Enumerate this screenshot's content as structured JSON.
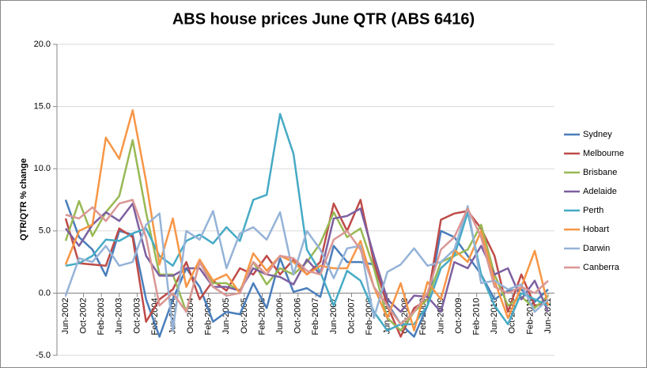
{
  "chart_data": {
    "type": "line",
    "title": "ABS house prices June QTR (ABS 6416)",
    "y_label": "QTR/QTR % change",
    "x": [
      "2002-06",
      "2002-09",
      "2002-12",
      "2003-03",
      "2003-06",
      "2003-09",
      "2003-12",
      "2004-03",
      "2004-06",
      "2004-09",
      "2004-12",
      "2005-03",
      "2005-06",
      "2005-09",
      "2005-12",
      "2006-03",
      "2006-06",
      "2006-09",
      "2006-12",
      "2007-03",
      "2007-06",
      "2007-09",
      "2007-12",
      "2008-03",
      "2008-06",
      "2008-09",
      "2008-12",
      "2009-03",
      "2009-06",
      "2009-09",
      "2009-12",
      "2010-03",
      "2010-06",
      "2010-09",
      "2010-12",
      "2011-03",
      "2011-06"
    ],
    "xlim": [
      "2002-06",
      "2011-06"
    ],
    "xticks": [
      {
        "value": "2002-06",
        "label": "Jun-2002"
      },
      {
        "value": "2002-10",
        "label": "Oct-2002"
      },
      {
        "value": "2003-02",
        "label": "Feb-2003"
      },
      {
        "value": "2003-06",
        "label": "Jun-2003"
      },
      {
        "value": "2003-10",
        "label": "Oct-2003"
      },
      {
        "value": "2004-02",
        "label": "Feb-2004"
      },
      {
        "value": "2004-06",
        "label": "Jun-2004"
      },
      {
        "value": "2004-10",
        "label": "Oct-2004"
      },
      {
        "value": "2005-02",
        "label": "Feb-2005"
      },
      {
        "value": "2005-06",
        "label": "Jun-2005"
      },
      {
        "value": "2005-10",
        "label": "Oct-2005"
      },
      {
        "value": "2006-02",
        "label": "Feb-2006"
      },
      {
        "value": "2006-06",
        "label": "Jun-2006"
      },
      {
        "value": "2006-10",
        "label": "Oct-2006"
      },
      {
        "value": "2007-02",
        "label": "Feb-2007"
      },
      {
        "value": "2007-06",
        "label": "Jun-2007"
      },
      {
        "value": "2007-10",
        "label": "Oct-2007"
      },
      {
        "value": "2008-02",
        "label": "Feb-2008"
      },
      {
        "value": "2008-06",
        "label": "Jun-2008"
      },
      {
        "value": "2008-10",
        "label": "Oct-2008"
      },
      {
        "value": "2009-02",
        "label": "Feb-2009"
      },
      {
        "value": "2009-06",
        "label": "Jun-2009"
      },
      {
        "value": "2009-10",
        "label": "Oct-2009"
      },
      {
        "value": "2010-02",
        "label": "Feb-2010"
      },
      {
        "value": "2010-06",
        "label": "Jun-2010"
      },
      {
        "value": "2010-10",
        "label": "Oct-2010"
      },
      {
        "value": "2011-02",
        "label": "Feb-2011"
      },
      {
        "value": "2011-06",
        "label": "Jun-2011"
      }
    ],
    "ylim": [
      -5,
      20
    ],
    "yticks": [
      {
        "value": -5,
        "label": "-5.0"
      },
      {
        "value": 0,
        "label": "0.0"
      },
      {
        "value": 5,
        "label": "5.0"
      },
      {
        "value": 10,
        "label": "10.0"
      },
      {
        "value": 15,
        "label": "15.0"
      },
      {
        "value": 20,
        "label": "20.0"
      }
    ],
    "grid": true,
    "legend": "right",
    "series": [
      {
        "name": "Sydney",
        "color": "#4a7ebb",
        "values": [
          7.5,
          4.5,
          3.5,
          1.4,
          5.0,
          4.7,
          -0.5,
          -3.5,
          -0.5,
          2.0,
          0.5,
          -2.3,
          -1.5,
          -1.7,
          0.8,
          -1.2,
          2.8,
          0.1,
          0.4,
          -0.3,
          3.8,
          2.5,
          2.5,
          2.3,
          -0.8,
          -2.5,
          -3.5,
          -1.0,
          5.0,
          4.5,
          3.0,
          1.5,
          -0.5,
          0.2,
          0.3,
          -0.7,
          0.3
        ]
      },
      {
        "name": "Melbourne",
        "color": "#be4b48",
        "values": [
          6.0,
          2.4,
          2.3,
          2.2,
          5.2,
          4.5,
          -2.3,
          -0.5,
          0.3,
          2.5,
          -0.5,
          1.0,
          0.2,
          2.0,
          1.5,
          3.0,
          1.5,
          2.7,
          1.5,
          2.5,
          7.2,
          5.0,
          7.5,
          2.5,
          -1.0,
          -3.5,
          -1.2,
          -0.5,
          5.9,
          6.4,
          6.6,
          5.2,
          3.0,
          -1.5,
          1.5,
          -1.0,
          -0.8
        ]
      },
      {
        "name": "Brisbane",
        "color": "#98b954",
        "values": [
          4.2,
          7.4,
          4.6,
          6.5,
          7.8,
          12.3,
          6.5,
          1.5,
          1.5,
          -1.5,
          2.5,
          0.8,
          0.8,
          0.2,
          2.5,
          0.7,
          2.0,
          1.5,
          2.5,
          4.0,
          6.5,
          4.5,
          5.2,
          2.0,
          -2.0,
          -3.0,
          -1.5,
          -0.5,
          2.5,
          3.0,
          3.5,
          5.5,
          1.5,
          -1.0,
          -0.3,
          -1.2,
          -0.2
        ]
      },
      {
        "name": "Adelaide",
        "color": "#7d60a0",
        "values": [
          5.2,
          3.8,
          5.5,
          6.5,
          5.8,
          7.2,
          3.0,
          1.4,
          1.4,
          2.0,
          2.0,
          0.5,
          0.5,
          0.2,
          2.0,
          1.5,
          1.3,
          0.7,
          2.7,
          1.5,
          6.0,
          6.2,
          6.8,
          3.0,
          -0.5,
          -1.5,
          -0.2,
          -0.3,
          -1.5,
          2.5,
          2.0,
          3.8,
          1.5,
          2.0,
          -0.5,
          1.0,
          -1.5
        ]
      },
      {
        "name": "Perth",
        "color": "#46aac5",
        "values": [
          2.2,
          2.4,
          3.0,
          4.3,
          4.2,
          4.8,
          5.2,
          3.0,
          2.2,
          4.2,
          4.7,
          4.0,
          5.3,
          4.2,
          7.5,
          7.9,
          14.4,
          11.2,
          3.5,
          1.7,
          -1.0,
          1.8,
          1.0,
          -1.5,
          -3.0,
          -2.5,
          -2.5,
          -1.0,
          2.0,
          3.0,
          6.5,
          1.5,
          -1.0,
          -2.5,
          0.0,
          -0.5,
          -1.0
        ]
      },
      {
        "name": "Hobart",
        "color": "#f79646",
        "values": [
          2.3,
          5.0,
          5.5,
          12.5,
          10.8,
          14.7,
          9.0,
          2.3,
          6.0,
          0.5,
          2.7,
          1.0,
          1.5,
          0.0,
          3.2,
          1.8,
          3.0,
          2.5,
          1.5,
          2.2,
          2.0,
          2.0,
          4.2,
          0.5,
          -2.0,
          0.8,
          -3.0,
          0.9,
          -0.5,
          3.5,
          2.5,
          5.0,
          1.0,
          -2.0,
          0.5,
          3.4,
          -1.0
        ]
      },
      {
        "name": "Darwin",
        "color": "#95b3d7",
        "values": [
          -0.2,
          2.8,
          2.5,
          3.8,
          2.2,
          2.5,
          5.5,
          6.4,
          -3.0,
          5.0,
          4.3,
          6.6,
          2.0,
          4.8,
          5.3,
          4.3,
          6.5,
          1.5,
          5.0,
          3.5,
          1.2,
          3.6,
          3.8,
          -2.0,
          1.7,
          2.3,
          3.6,
          2.2,
          2.5,
          3.5,
          7.0,
          0.8,
          1.0,
          0.3,
          0.7,
          -1.5,
          -0.5
        ]
      },
      {
        "name": "Canberra",
        "color": "#d99795",
        "values": [
          6.3,
          6.0,
          6.9,
          5.8,
          7.2,
          7.5,
          4.5,
          -1.0,
          0.0,
          -1.5,
          2.5,
          0.5,
          -0.2,
          0.0,
          2.5,
          1.5,
          3.0,
          2.8,
          1.8,
          1.5,
          4.3,
          5.0,
          3.5,
          0.5,
          -1.0,
          -2.5,
          -1.5,
          0.0,
          3.5,
          4.5,
          6.8,
          4.5,
          0.5,
          0.0,
          0.5,
          0.0,
          1.0
        ]
      }
    ]
  }
}
